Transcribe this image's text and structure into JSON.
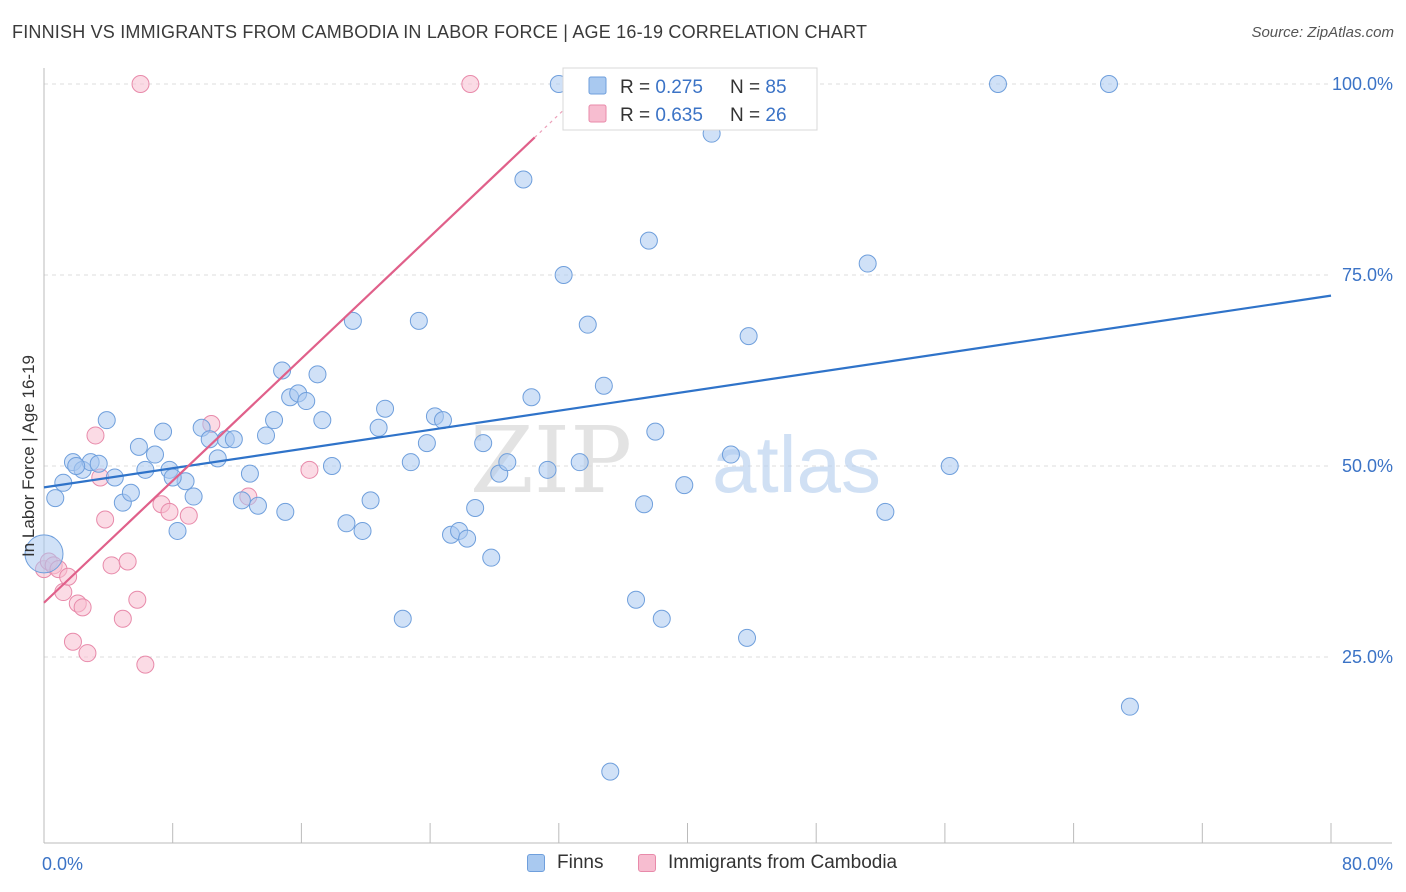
{
  "header": {
    "title": "FINNISH VS IMMIGRANTS FROM CAMBODIA IN LABOR FORCE | AGE 16-19 CORRELATION CHART",
    "source": "Source: ZipAtlas.com"
  },
  "watermark": {
    "part1": "ZIP",
    "part2": "atlas"
  },
  "colors": {
    "finns_fill": "#a9c9f0",
    "finns_stroke": "#6f9fdc",
    "finns_line": "#2f73c9",
    "camb_fill": "#f7bdd0",
    "camb_stroke": "#e88aaa",
    "camb_line": "#e0608a",
    "axis_label": "#3b73c6",
    "grid": "#dddddd"
  },
  "stats": [
    {
      "r_label": "R = ",
      "r_value": "0.275",
      "n_label": "N = ",
      "n_value": "85"
    },
    {
      "r_label": "R = ",
      "r_value": "0.635",
      "n_label": "N = ",
      "n_value": "26"
    }
  ],
  "chart_data": {
    "type": "scatter",
    "title": "FINNISH VS IMMIGRANTS FROM CAMBODIA IN LABOR FORCE | AGE 16-19 CORRELATION CHART",
    "xlabel": "",
    "ylabel": "In Labor Force | Age 16-19",
    "xlim": [
      0,
      80
    ],
    "ylim": [
      0,
      105
    ],
    "x_tick_labels": [
      "0.0%",
      "80.0%"
    ],
    "y_tick_labels": [
      "25.0%",
      "50.0%",
      "75.0%",
      "100.0%"
    ],
    "y_ticks": [
      25,
      50,
      75,
      100
    ],
    "grid": true,
    "legend_position": "bottom",
    "series": [
      {
        "name": "Finns",
        "r": 0.275,
        "n": 85,
        "trend": {
          "x": [
            0,
            80
          ],
          "y": [
            47.2,
            72.3
          ]
        },
        "points": [
          [
            0.0,
            38.5
          ],
          [
            0.7,
            45.8
          ],
          [
            1.2,
            47.8
          ],
          [
            1.8,
            50.5
          ],
          [
            2.4,
            49.5
          ],
          [
            2.9,
            50.5
          ],
          [
            3.4,
            50.3
          ],
          [
            3.9,
            56.0
          ],
          [
            4.4,
            48.5
          ],
          [
            4.9,
            45.2
          ],
          [
            5.4,
            46.5
          ],
          [
            5.9,
            52.5
          ],
          [
            6.3,
            49.5
          ],
          [
            6.9,
            51.5
          ],
          [
            7.4,
            54.5
          ],
          [
            7.8,
            49.5
          ],
          [
            8.3,
            41.5
          ],
          [
            8.8,
            48.0
          ],
          [
            9.3,
            46.0
          ],
          [
            9.8,
            55.0
          ],
          [
            10.3,
            53.5
          ],
          [
            10.8,
            51.0
          ],
          [
            11.3,
            53.5
          ],
          [
            11.8,
            53.5
          ],
          [
            12.3,
            45.5
          ],
          [
            12.8,
            49.0
          ],
          [
            13.3,
            44.8
          ],
          [
            13.8,
            54.0
          ],
          [
            14.3,
            56.0
          ],
          [
            14.8,
            62.5
          ],
          [
            15.3,
            59.0
          ],
          [
            15.8,
            59.5
          ],
          [
            16.3,
            58.5
          ],
          [
            17.0,
            62.0
          ],
          [
            17.3,
            56.0
          ],
          [
            17.9,
            50.0
          ],
          [
            18.8,
            42.5
          ],
          [
            19.2,
            69.0
          ],
          [
            19.8,
            41.5
          ],
          [
            20.3,
            45.5
          ],
          [
            20.8,
            55.0
          ],
          [
            21.2,
            57.5
          ],
          [
            22.3,
            30.0
          ],
          [
            22.8,
            50.5
          ],
          [
            23.3,
            69.0
          ],
          [
            23.8,
            53.0
          ],
          [
            24.3,
            56.5
          ],
          [
            24.8,
            56.0
          ],
          [
            25.3,
            41.0
          ],
          [
            25.8,
            41.5
          ],
          [
            26.3,
            40.5
          ],
          [
            26.8,
            44.5
          ],
          [
            27.3,
            53.0
          ],
          [
            27.8,
            38.0
          ],
          [
            28.3,
            49.0
          ],
          [
            28.8,
            50.5
          ],
          [
            29.8,
            87.5
          ],
          [
            30.3,
            59.0
          ],
          [
            31.3,
            49.5
          ],
          [
            32.0,
            100.0
          ],
          [
            32.3,
            75.0
          ],
          [
            33.3,
            50.5
          ],
          [
            33.8,
            68.5
          ],
          [
            34.8,
            60.5
          ],
          [
            35.2,
            10.0
          ],
          [
            35.8,
            100.0
          ],
          [
            36.8,
            32.5
          ],
          [
            37.3,
            45.0
          ],
          [
            37.6,
            79.5
          ],
          [
            38.0,
            54.5
          ],
          [
            38.4,
            30.0
          ],
          [
            39.8,
            47.5
          ],
          [
            41.5,
            93.5
          ],
          [
            42.7,
            51.5
          ],
          [
            43.7,
            27.5
          ],
          [
            43.8,
            67.0
          ],
          [
            51.2,
            76.5
          ],
          [
            52.3,
            44.0
          ],
          [
            56.3,
            50.0
          ],
          [
            59.3,
            100.0
          ],
          [
            66.2,
            100.0
          ],
          [
            67.5,
            18.5
          ],
          [
            15.0,
            44.0
          ],
          [
            8.0,
            48.5
          ],
          [
            2.0,
            50.0
          ]
        ]
      },
      {
        "name": "Immigrants from Cambodia",
        "r": 0.635,
        "n": 26,
        "trend": {
          "x": [
            0,
            30.5
          ],
          "y": [
            32.1,
            93.0
          ]
        },
        "trend_extension": {
          "x": [
            30.5,
            33.3
          ],
          "y": [
            93.0,
            98.6
          ]
        },
        "points": [
          [
            0.0,
            36.5
          ],
          [
            0.3,
            37.5
          ],
          [
            0.6,
            37.0
          ],
          [
            0.9,
            36.5
          ],
          [
            1.2,
            33.5
          ],
          [
            1.5,
            35.5
          ],
          [
            1.8,
            27.0
          ],
          [
            2.1,
            32.0
          ],
          [
            2.4,
            31.5
          ],
          [
            2.7,
            25.5
          ],
          [
            3.2,
            54.0
          ],
          [
            3.5,
            48.5
          ],
          [
            3.8,
            43.0
          ],
          [
            4.2,
            37.0
          ],
          [
            4.9,
            30.0
          ],
          [
            5.2,
            37.5
          ],
          [
            5.8,
            32.5
          ],
          [
            6.3,
            24.0
          ],
          [
            7.3,
            45.0
          ],
          [
            7.8,
            44.0
          ],
          [
            9.0,
            43.5
          ],
          [
            10.4,
            55.5
          ],
          [
            12.7,
            46.0
          ],
          [
            16.5,
            49.5
          ],
          [
            6.0,
            100.0
          ],
          [
            26.5,
            100.0
          ]
        ]
      }
    ]
  },
  "legend": {
    "items": [
      {
        "label": "Finns"
      },
      {
        "label": "Immigrants from Cambodia"
      }
    ]
  }
}
